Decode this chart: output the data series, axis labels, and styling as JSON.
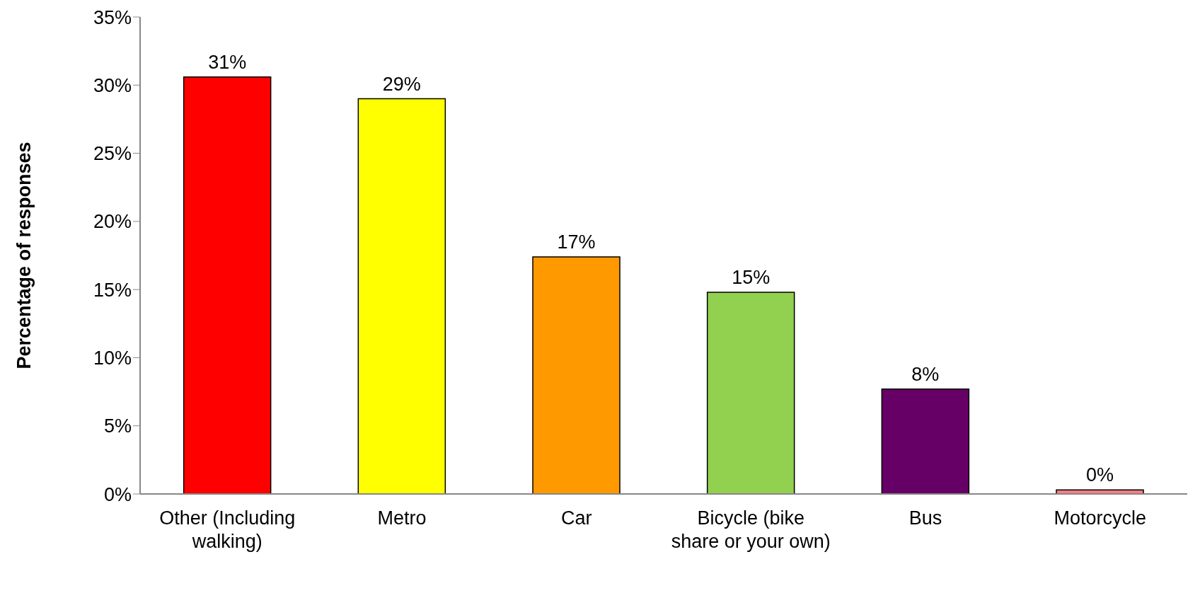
{
  "chart_data": {
    "type": "bar",
    "ylabel": "Percentage of responses",
    "categories": [
      "Other (Including walking)",
      "Metro",
      "Car",
      "Bicycle (bike share or your own)",
      "Bus",
      "Motorcycle"
    ],
    "values": [
      30.6,
      29.0,
      17.4,
      14.8,
      7.7,
      0.3
    ],
    "colors": [
      "#ff0000",
      "#ffff00",
      "#ff9900",
      "#92d050",
      "#660066",
      "#ff7c80"
    ],
    "value_labels": [
      "31%",
      "29%",
      "17%",
      "15%",
      "8%",
      "0%"
    ],
    "ylim": [
      0,
      35
    ],
    "yticks": [
      {
        "value": 0,
        "label": "0%"
      },
      {
        "value": 5,
        "label": "5%"
      },
      {
        "value": 10,
        "label": "10%"
      },
      {
        "value": 15,
        "label": "15%"
      },
      {
        "value": 20,
        "label": "20%"
      },
      {
        "value": 25,
        "label": "25%"
      },
      {
        "value": 30,
        "label": "30%"
      },
      {
        "value": 35,
        "label": "35%"
      }
    ],
    "grid": false,
    "legend": false
  }
}
